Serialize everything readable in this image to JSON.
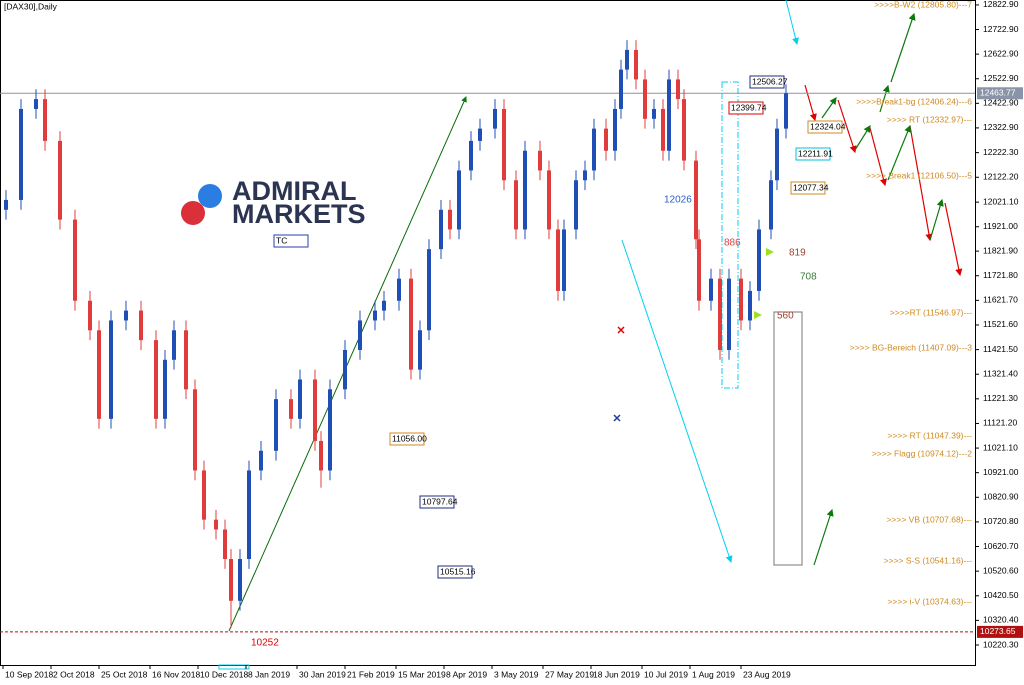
{
  "chart_data": {
    "type": "candlestick",
    "title": "[DAX30],Daily",
    "logo": {
      "line1": "ADMIRAL",
      "line2": "MARKETS"
    },
    "up_color": "#1f4fb4",
    "down_color": "#e03c3c",
    "xlim": [
      0,
      325
    ],
    "xticks": [
      {
        "value": 1,
        "label": "10 Sep 2018"
      },
      {
        "value": 17,
        "label": "2 Oct 2018"
      },
      {
        "value": 33,
        "label": "25 Oct 2018"
      },
      {
        "value": 50,
        "label": "16 Nov 2018"
      },
      {
        "value": 66,
        "label": "10 Dec 2018"
      },
      {
        "value": 82,
        "label": "8 Jan 2019"
      },
      {
        "value": 99,
        "label": "30 Jan 2019"
      },
      {
        "value": 115,
        "label": "21 Feb 2019"
      },
      {
        "value": 132,
        "label": "15 Mar 2019"
      },
      {
        "value": 148,
        "label": "8 Apr 2019"
      },
      {
        "value": 164,
        "label": "3 May 2019"
      },
      {
        "value": 181,
        "label": "27 May 2019"
      },
      {
        "value": 197,
        "label": "18 Jun 2019"
      },
      {
        "value": 214,
        "label": "10 Jul 2019"
      },
      {
        "value": 230,
        "label": "1 Aug 2019"
      },
      {
        "value": 247,
        "label": "23 Aug 2019"
      }
    ],
    "ylim": [
      10139,
      12843
    ],
    "yticks": [
      {
        "value": 12822.9,
        "label": "12822.90"
      },
      {
        "value": 12722.9,
        "label": "12722.90"
      },
      {
        "value": 12622.9,
        "label": "12622.90"
      },
      {
        "value": 12522.9,
        "label": "12522.90"
      },
      {
        "value": 12422.9,
        "label": "12422.90"
      },
      {
        "value": 12322.9,
        "label": "12322.90"
      },
      {
        "value": 12222.3,
        "label": "12222.30"
      },
      {
        "value": 12122.2,
        "label": "12122.20"
      },
      {
        "value": 12021.1,
        "label": "12021.10"
      },
      {
        "value": 11921,
        "label": "11921.00"
      },
      {
        "value": 11821.9,
        "label": "11821.90"
      },
      {
        "value": 11721.8,
        "label": "11721.80"
      },
      {
        "value": 11621.7,
        "label": "11621.70"
      },
      {
        "value": 11521.6,
        "label": "11521.60"
      },
      {
        "value": 11421.5,
        "label": "11421.50"
      },
      {
        "value": 11321.4,
        "label": "11321.40"
      },
      {
        "value": 11221.3,
        "label": "11221.30"
      },
      {
        "value": 11121.2,
        "label": "11121.20"
      },
      {
        "value": 11021.1,
        "label": "11021.10"
      },
      {
        "value": 10921,
        "label": "10921.00"
      },
      {
        "value": 10820.9,
        "label": "10820.90"
      },
      {
        "value": 10720.8,
        "label": "10720.80"
      },
      {
        "value": 10620.7,
        "label": "10620.70"
      },
      {
        "value": 10520.6,
        "label": "10520.60"
      },
      {
        "value": 10420.5,
        "label": "10420.50"
      },
      {
        "value": 10320.4,
        "label": "10320.40"
      },
      {
        "value": 10220.3,
        "label": "10220.30"
      }
    ],
    "current_price": 12463.77,
    "low_line": 10273.65,
    "candles": [
      [
        2,
        11990,
        12070,
        11950,
        12030
      ],
      [
        7,
        12030,
        12440,
        11990,
        12400
      ],
      [
        12,
        12400,
        12480,
        12360,
        12440
      ],
      [
        15,
        12440,
        12480,
        12230,
        12270
      ],
      [
        20,
        12270,
        12310,
        11910,
        11950
      ],
      [
        25,
        11950,
        11990,
        11580,
        11620
      ],
      [
        30,
        11620,
        11660,
        11460,
        11500
      ],
      [
        33,
        11500,
        11540,
        11100,
        11140
      ],
      [
        37,
        11140,
        11580,
        11100,
        11540
      ],
      [
        42,
        11540,
        11620,
        11500,
        11580
      ],
      [
        47,
        11580,
        11620,
        11420,
        11460
      ],
      [
        52,
        11460,
        11500,
        11100,
        11140
      ],
      [
        55,
        11140,
        11420,
        11100,
        11380
      ],
      [
        58,
        11380,
        11540,
        11340,
        11500
      ],
      [
        62,
        11500,
        11540,
        11220,
        11260
      ],
      [
        65,
        11260,
        11300,
        10890,
        10930
      ],
      [
        68,
        10930,
        10970,
        10690,
        10730
      ],
      [
        72,
        10730,
        10770,
        10650,
        10690
      ],
      [
        75,
        10690,
        10730,
        10530,
        10570
      ],
      [
        77,
        10570,
        10610,
        10290,
        10400
      ],
      [
        80,
        10400,
        10610,
        10360,
        10570
      ],
      [
        83,
        10570,
        10970,
        10530,
        10930
      ],
      [
        87,
        10930,
        11050,
        10890,
        11010
      ],
      [
        92,
        11010,
        11260,
        10970,
        11220
      ],
      [
        97,
        11220,
        11260,
        11100,
        11140
      ],
      [
        100,
        11140,
        11340,
        11100,
        11300
      ],
      [
        105,
        11300,
        11340,
        11010,
        11050
      ],
      [
        107,
        11050,
        11090,
        10860,
        10930
      ],
      [
        110,
        10930,
        11300,
        10890,
        11260
      ],
      [
        115,
        11260,
        11460,
        11220,
        11420
      ],
      [
        120,
        11420,
        11580,
        11380,
        11540
      ],
      [
        125,
        11540,
        11620,
        11500,
        11580
      ],
      [
        128,
        11580,
        11660,
        11540,
        11620
      ],
      [
        133,
        11620,
        11750,
        11580,
        11710
      ],
      [
        137,
        11710,
        11750,
        11300,
        11340
      ],
      [
        140,
        11340,
        11540,
        11300,
        11500
      ],
      [
        143,
        11500,
        11870,
        11460,
        11830
      ],
      [
        147,
        11830,
        12030,
        11790,
        11990
      ],
      [
        150,
        11990,
        12030,
        11870,
        11910
      ],
      [
        153,
        11910,
        12190,
        11870,
        12150
      ],
      [
        157,
        12150,
        12310,
        12110,
        12270
      ],
      [
        160,
        12270,
        12360,
        12230,
        12320
      ],
      [
        165,
        12320,
        12440,
        12280,
        12400
      ],
      [
        168,
        12400,
        12440,
        12070,
        12110
      ],
      [
        172,
        12110,
        12150,
        11870,
        11910
      ],
      [
        175,
        11910,
        12270,
        11870,
        12230
      ],
      [
        180,
        12230,
        12270,
        12110,
        12150
      ],
      [
        183,
        12150,
        12190,
        11870,
        11910
      ],
      [
        186,
        11910,
        11950,
        11620,
        11660
      ],
      [
        188,
        11660,
        11950,
        11620,
        11910
      ],
      [
        192,
        11910,
        12150,
        11870,
        12110
      ],
      [
        195,
        12110,
        12190,
        12070,
        12150
      ],
      [
        198,
        12150,
        12360,
        12110,
        12320
      ],
      [
        202,
        12320,
        12360,
        12190,
        12230
      ],
      [
        205,
        12230,
        12440,
        12190,
        12400
      ],
      [
        207,
        12400,
        12600,
        12360,
        12560
      ],
      [
        209,
        12560,
        12680,
        12520,
        12640
      ],
      [
        212,
        12640,
        12680,
        12480,
        12520
      ],
      [
        215,
        12520,
        12560,
        12320,
        12360
      ],
      [
        218,
        12360,
        12440,
        12320,
        12400
      ],
      [
        221,
        12400,
        12440,
        12190,
        12230
      ],
      [
        223,
        12230,
        12560,
        12190,
        12520
      ],
      [
        226,
        12520,
        12560,
        12400,
        12440
      ],
      [
        228,
        12440,
        12480,
        12150,
        12190
      ],
      [
        232,
        12190,
        12230,
        11830,
        11870
      ],
      [
        233,
        11870,
        11910,
        11580,
        11620
      ],
      [
        237,
        11620,
        11750,
        11580,
        11710
      ],
      [
        240,
        11710,
        11750,
        11380,
        11420
      ],
      [
        243,
        11420,
        11750,
        11380,
        11710
      ],
      [
        247,
        11710,
        11750,
        11500,
        11540
      ],
      [
        250,
        11540,
        11700,
        11500,
        11660
      ],
      [
        253,
        11660,
        11950,
        11620,
        11910
      ],
      [
        257,
        11910,
        12150,
        11870,
        12110
      ],
      [
        259,
        12110,
        12360,
        12070,
        12320
      ],
      [
        262,
        12320,
        12500,
        12280,
        12464
      ]
    ],
    "annotations": [
      "12506.27",
      "12399.74",
      "12324.04",
      "12211.91",
      "12077.34",
      "11056.00",
      "10797.64",
      "10515.16",
      "12026",
      "886",
      "819",
      "708",
      "560",
      "10252",
      "TC"
    ],
    "levels": [
      ">>>>B-W2 (12805.80)---7",
      ">>>>Break1-bg (12406.24)---6",
      ">>>> RT (12332.97)---",
      ">>>> Break1 (12106.50)---5",
      ">>>>RT (11546.97)---",
      ">>>> BG-Bereich (11407.09)---3",
      ">>>> RT (11047.39)---",
      ">>>> Flagg (10974.12)---2",
      ">>>> VB (10707.68)---",
      ">>>> S-S (10541.16)---",
      ">>>> i-V (10374.63)---"
    ]
  }
}
